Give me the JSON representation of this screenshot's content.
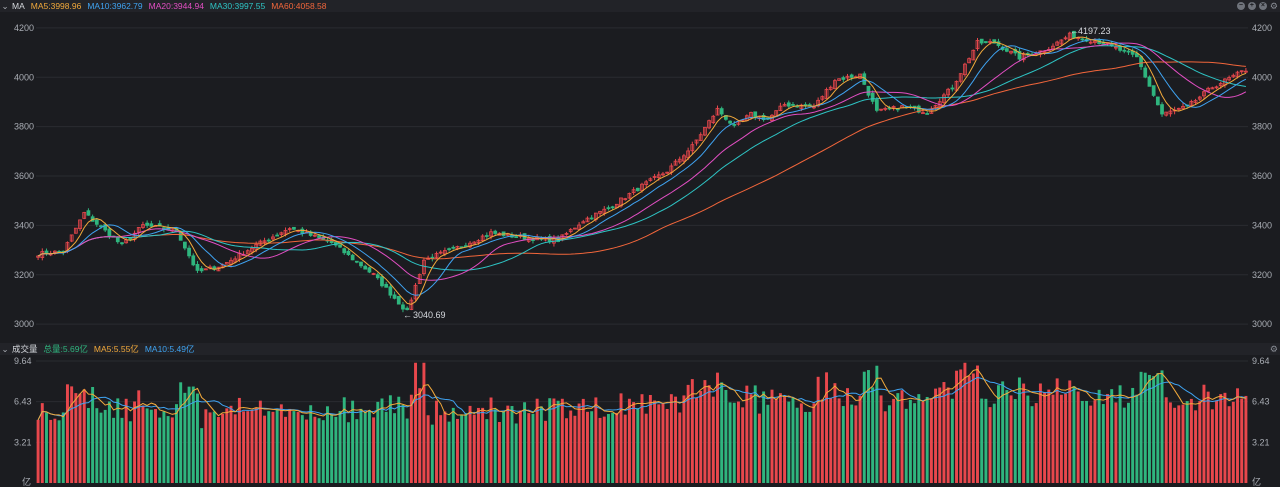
{
  "price_header": {
    "label": "MA",
    "ma5": "MA5:3998.96",
    "ma10": "MA10:3962.79",
    "ma20": "MA20:3944.94",
    "ma30": "MA30:3997.55",
    "ma60": "MA60:4058.58"
  },
  "volume_header": {
    "label": "成交量",
    "total": "总量:5.69亿",
    "ma5": "MA5:5.55亿",
    "ma10": "MA10:5.49亿"
  },
  "colors": {
    "up": "#e8474c",
    "down": "#2fb57e",
    "ma5": "#f2a93b",
    "ma10": "#3fa3f1",
    "ma20": "#e24ec3",
    "ma30": "#2ec4c4",
    "ma60": "#f2663b",
    "grid": "#2a2b31",
    "background": "#1b1c20"
  },
  "chart_data": [
    {
      "type": "candlestick",
      "y_ticks": [
        "4200",
        "4000",
        "3800",
        "3600",
        "3400",
        "3200",
        "3000"
      ],
      "ylim": [
        2940,
        4240
      ],
      "annotations": {
        "high": "4197.23",
        "low": "3040.69"
      },
      "trend": {
        "anchors_index": [
          0,
          6,
          11,
          20,
          25,
          33,
          38,
          44,
          52,
          60,
          70,
          80,
          88,
          92,
          100,
          108,
          116,
          124,
          130,
          136,
          144,
          150,
          156,
          162,
          166,
          170,
          174,
          178,
          185,
          190,
          196,
          200,
          206,
          212,
          218,
          224,
          228,
          234,
          240,
          246,
          254,
          262,
          268,
          274,
          280,
          288
        ],
        "anchors_close": [
          3285,
          3295,
          3450,
          3320,
          3400,
          3380,
          3210,
          3240,
          3320,
          3390,
          3330,
          3200,
          3050,
          3260,
          3310,
          3370,
          3350,
          3340,
          3420,
          3470,
          3560,
          3620,
          3720,
          3870,
          3800,
          3850,
          3830,
          3890,
          3880,
          3990,
          4010,
          3860,
          3880,
          3860,
          3960,
          4140,
          4140,
          4080,
          4110,
          4170,
          4140,
          4080,
          3850,
          3880,
          3960,
          4030
        ]
      },
      "count": 289
    },
    {
      "type": "volume_bar",
      "y_ticks": [
        "9.64",
        "6.43",
        "3.21"
      ],
      "unit": "亿",
      "ylim": [
        0,
        9.64
      ]
    }
  ]
}
